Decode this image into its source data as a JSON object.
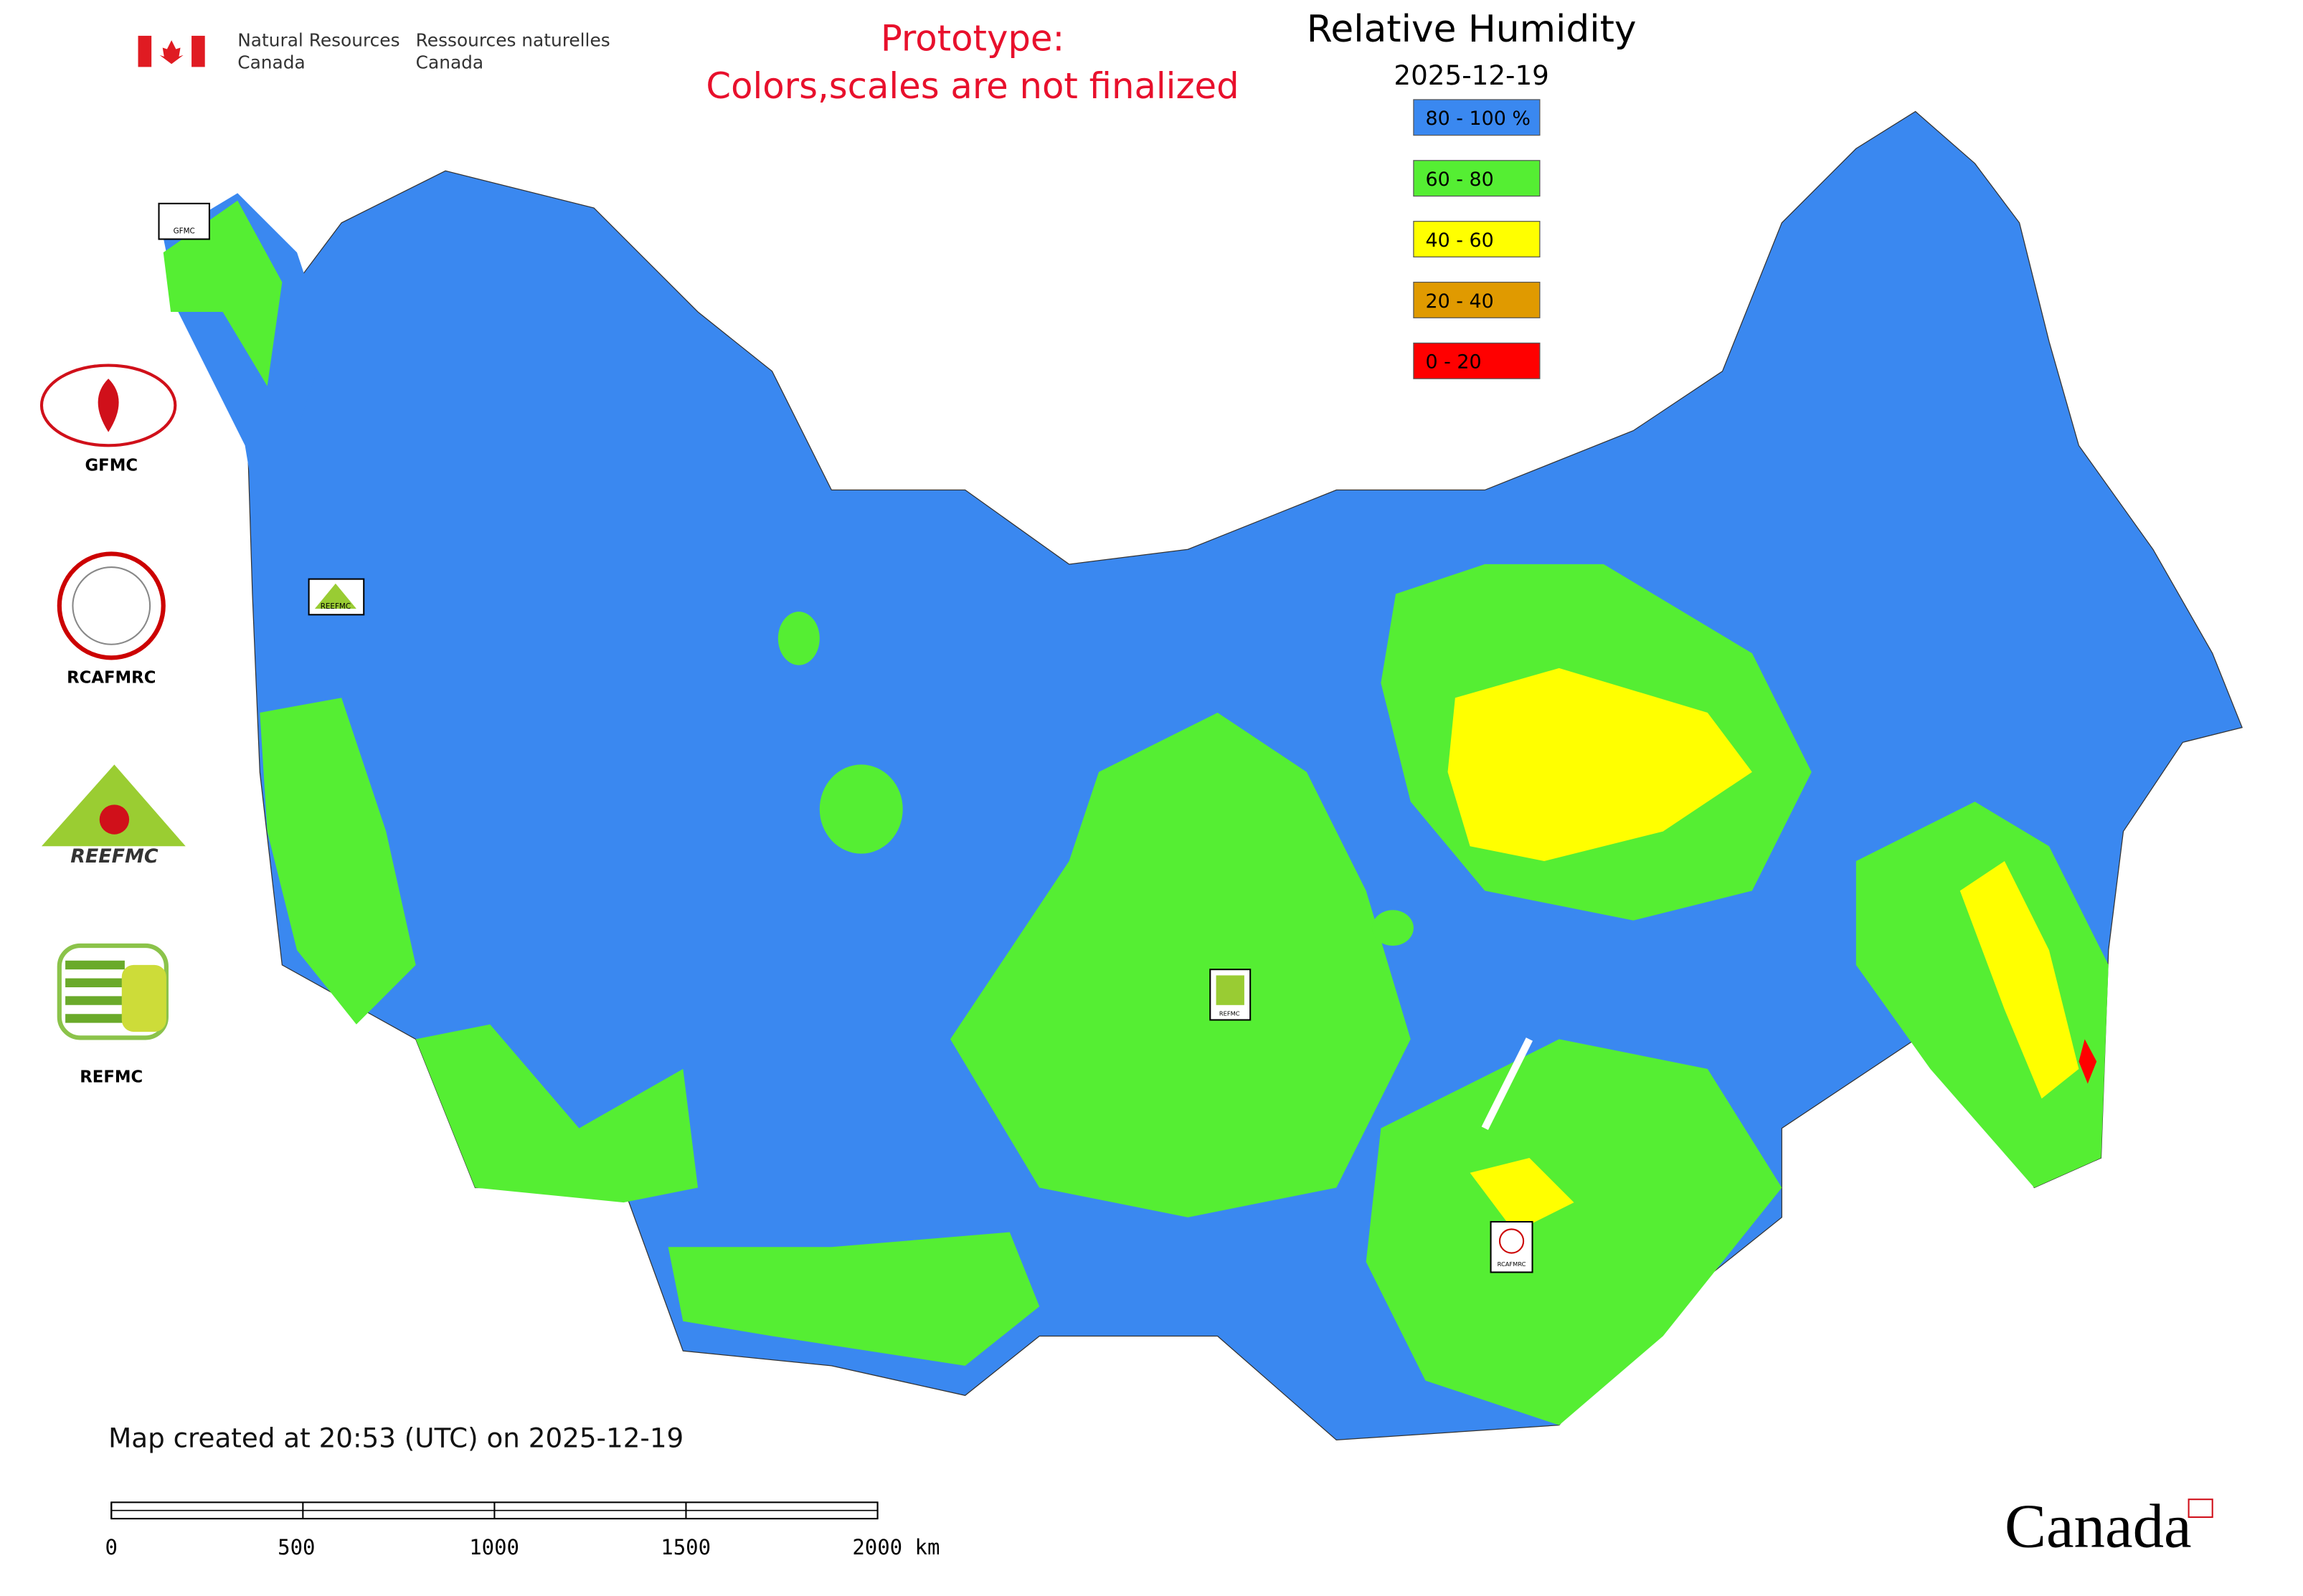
{
  "header": {
    "department_en": [
      "Natural Resources",
      "Canada"
    ],
    "department_fr": [
      "Ressources naturelles",
      "Canada"
    ],
    "notice": [
      "Prototype:",
      "Colors,scales are not finalized"
    ]
  },
  "map": {
    "title": "Relative Humidity",
    "date": "2025-12-19",
    "legend": [
      {
        "label": "80 - 100 %",
        "color": "#3a88f0"
      },
      {
        "label": "60 - 80",
        "color": "#55ee33"
      },
      {
        "label": "40 - 60",
        "color": "#ffff00"
      },
      {
        "label": "20 - 40",
        "color": "#e09a00"
      },
      {
        "label": "0 - 20",
        "color": "#ff0000"
      }
    ],
    "markers": [
      "GFMC",
      "REEFMC",
      "REFMC",
      "RCAFMRC"
    ]
  },
  "logos": [
    "GFMC",
    "RCAFMRC",
    "REEFMC",
    "REFMC"
  ],
  "footer": {
    "created": "Map created at 20:53 (UTC) on 2025-12-19",
    "scale_labels": [
      "0",
      "500",
      "1000",
      "1500",
      "2000 km"
    ],
    "wordmark": "Canada"
  }
}
